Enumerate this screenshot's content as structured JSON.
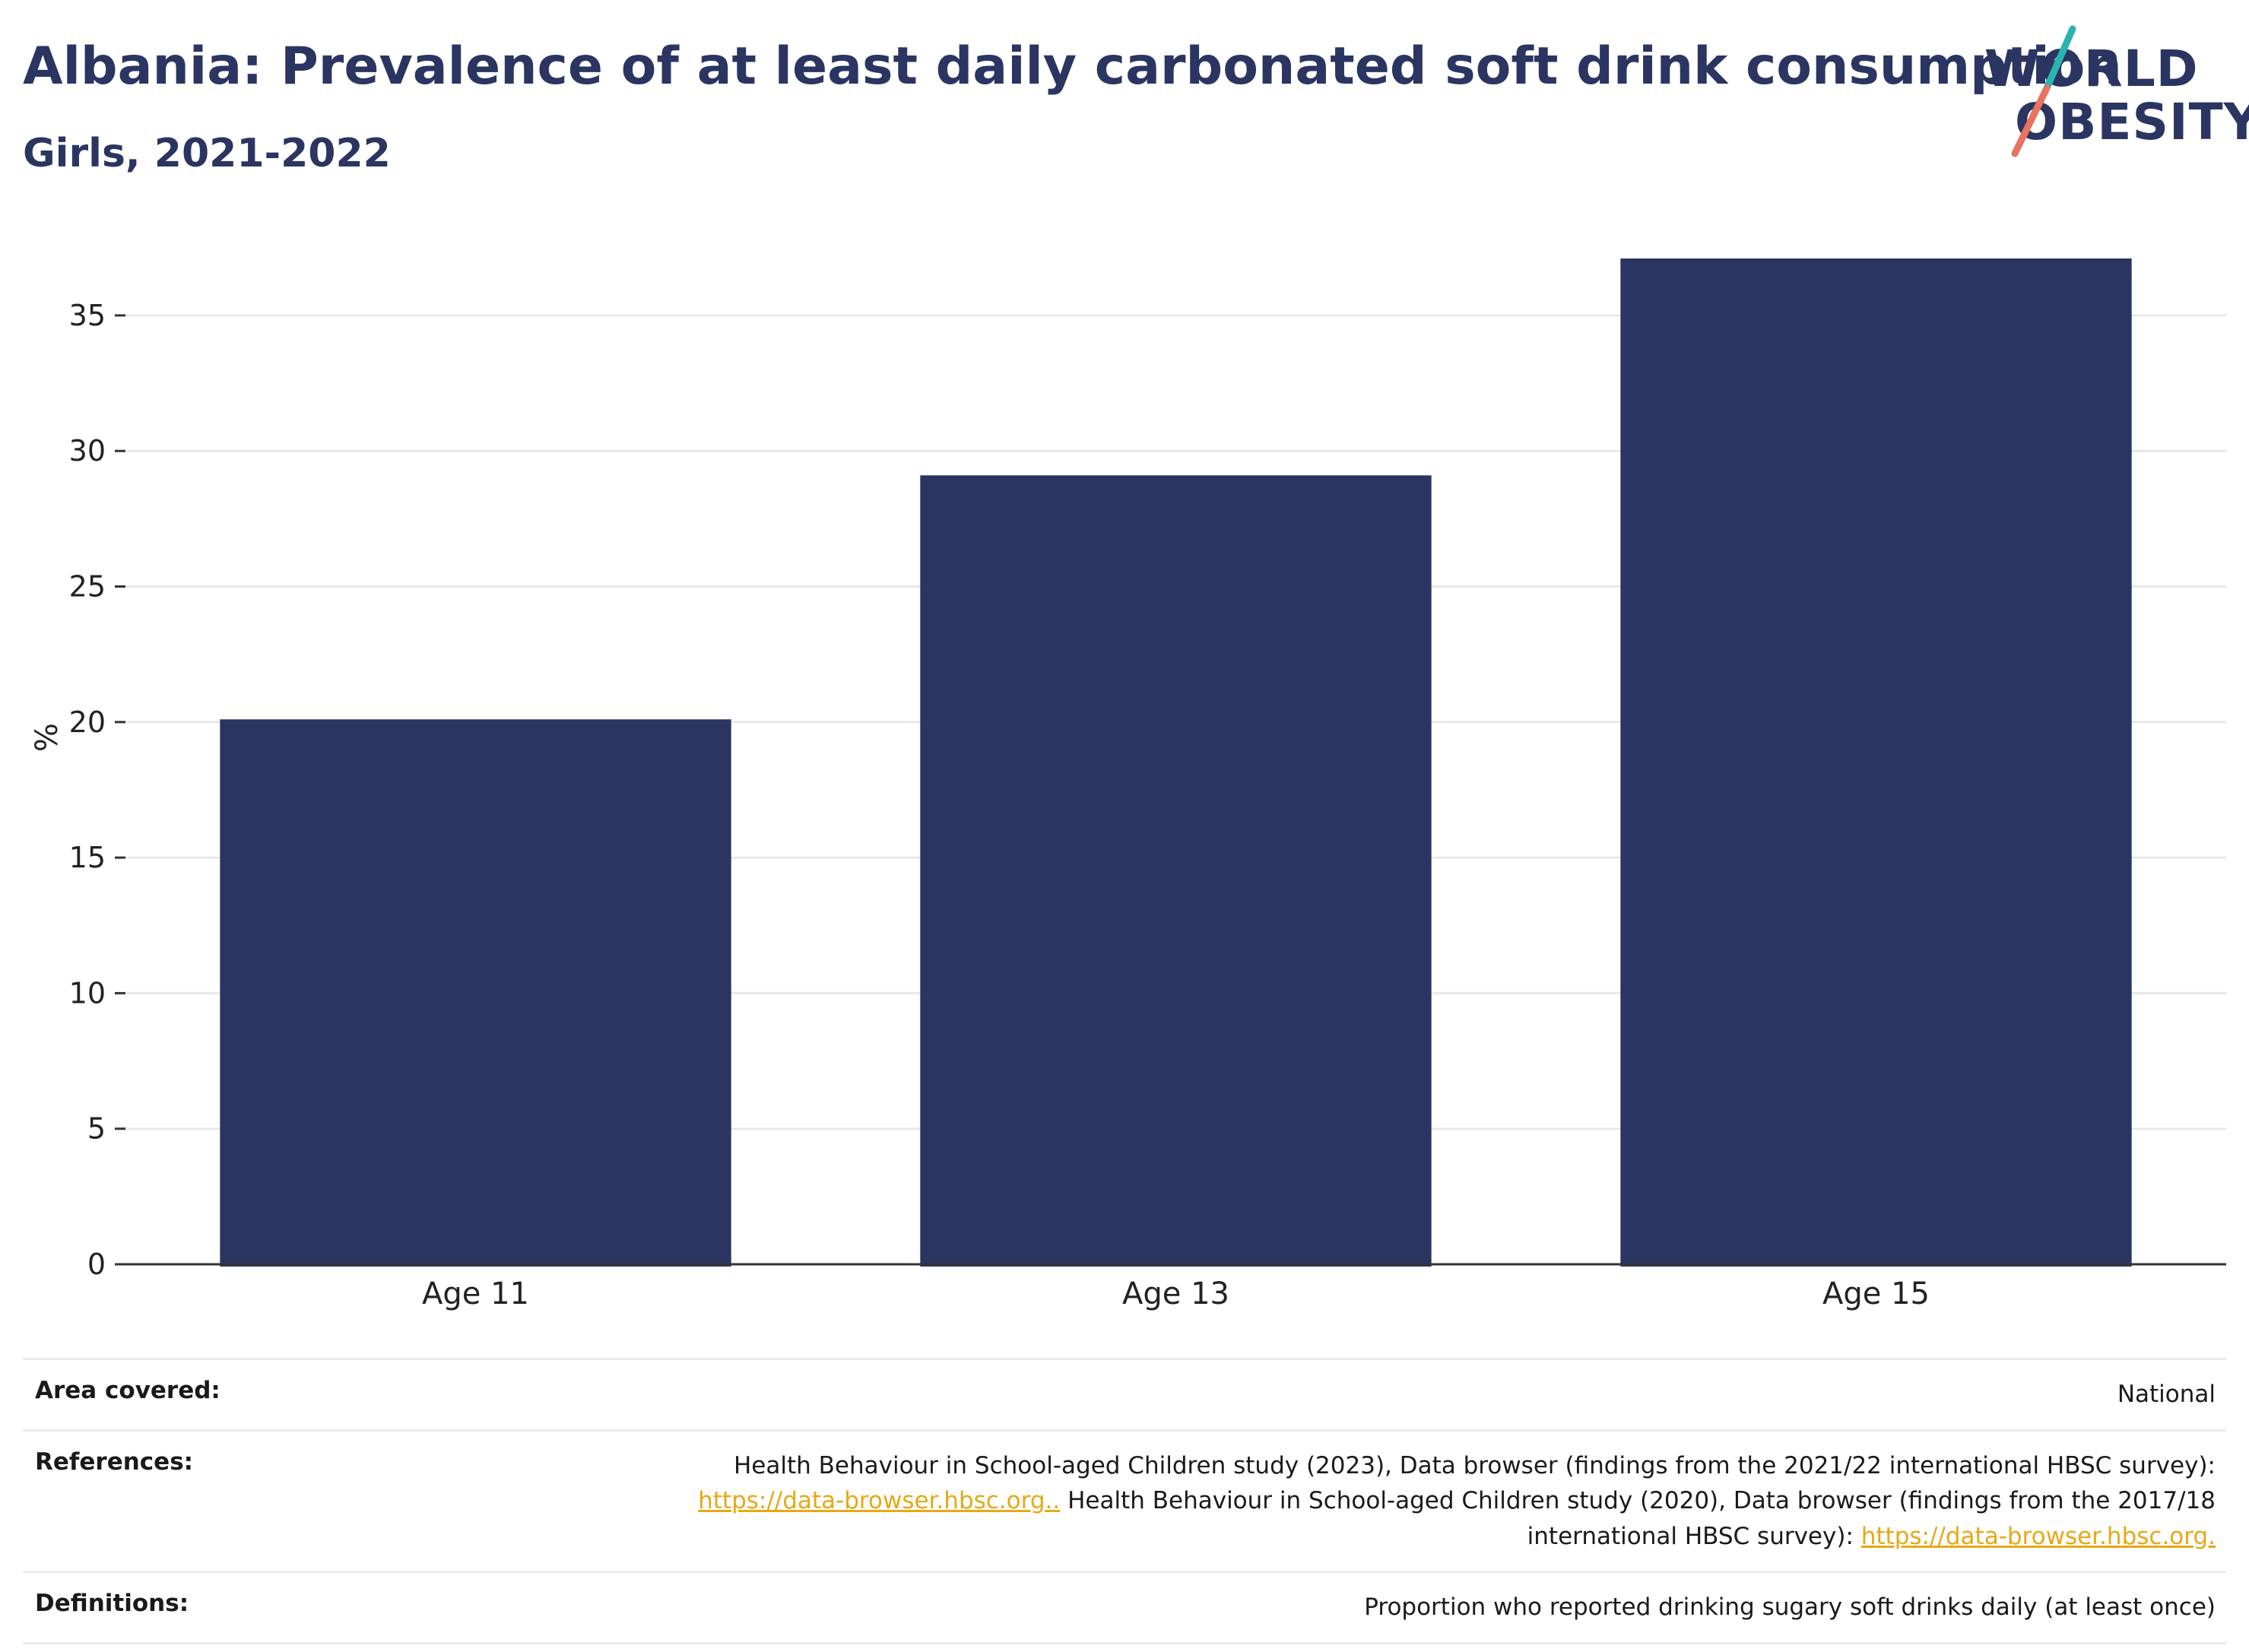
{
  "header": {
    "title": "Albania: Prevalence of at least daily carbonated soft drink consumption",
    "subtitle": "Girls, 2021-2022"
  },
  "logo": {
    "line1": "WORLD",
    "line2": "OBESITY",
    "colors": {
      "teal": "#2ab3b1",
      "coral": "#e8735f",
      "navy": "#2a3561"
    }
  },
  "chart_data": {
    "type": "bar",
    "categories": [
      "Age 11",
      "Age 13",
      "Age 15"
    ],
    "values": [
      20.1,
      29.1,
      37.1
    ],
    "ylabel": "%",
    "ylim": [
      0,
      37.1
    ],
    "yticks": [
      0,
      5,
      10,
      15,
      20,
      25,
      30,
      35
    ],
    "grid": true,
    "bar_color": "#2a3561"
  },
  "info": {
    "area": {
      "label": "Area covered:",
      "value": "National"
    },
    "references": {
      "label": "References:",
      "text1": "Health Behaviour in School-aged Children study (2023), Data browser (findings from the 2021/22 international HBSC survey):",
      "link1": "https://data-browser.hbsc.org..",
      "text2": "Health Behaviour in School-aged Children study (2020), Data browser (findings from the 2017/18 international HBSC survey):",
      "link2": "https://data-browser.hbsc.org."
    },
    "definitions": {
      "label": "Definitions:",
      "value": "Proportion who reported drinking sugary soft drinks daily (at least once)"
    }
  }
}
